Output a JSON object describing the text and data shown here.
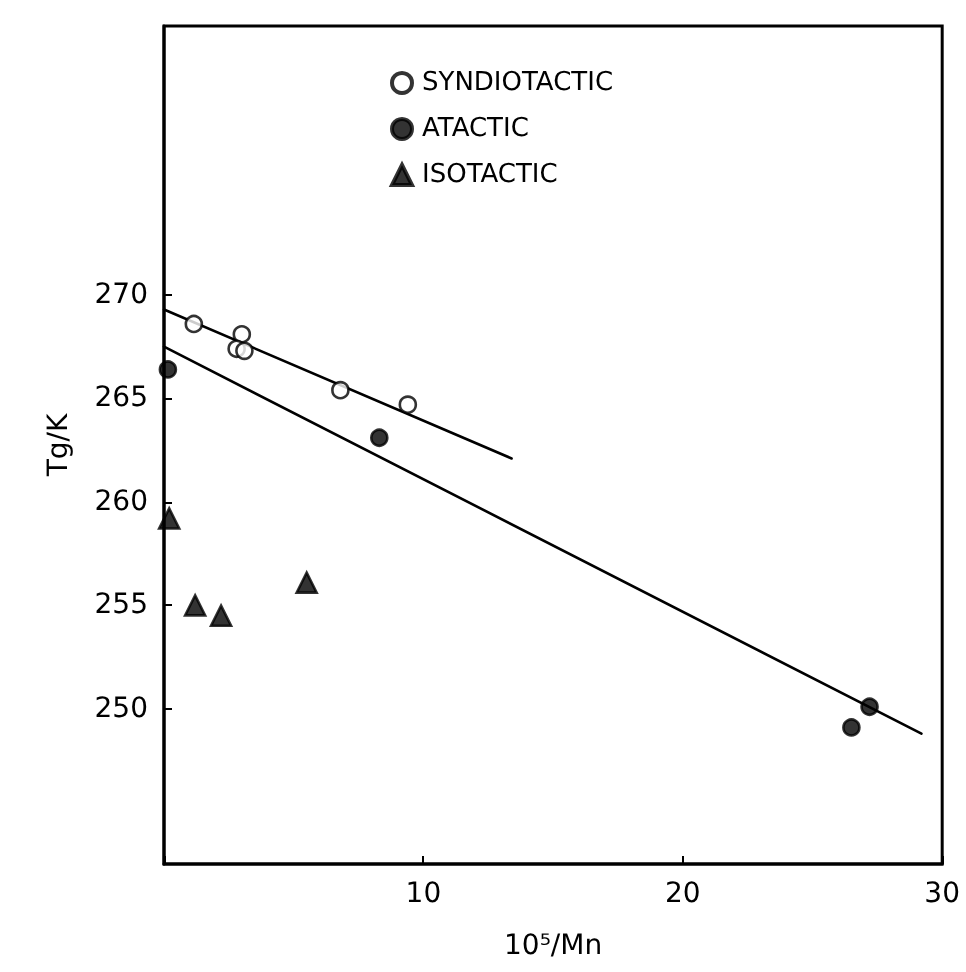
{
  "chart_data": {
    "type": "scatter",
    "xlabel": "10⁵/Mn",
    "ylabel": "Tg/K",
    "xlim": [
      0,
      30
    ],
    "xticks": [
      {
        "value": 0,
        "label": null
      },
      10,
      20,
      30
    ],
    "ylim": [
      242.5,
      283
    ],
    "yticks": [
      250,
      255,
      260,
      265,
      270
    ],
    "legend": "top",
    "grid": false,
    "series": [
      {
        "name": "SYNDIOTACTIC",
        "color": "#ffffff",
        "marker": "circle",
        "x": [
          1.15,
          3.0,
          2.8,
          3.1,
          6.8,
          9.4
        ],
        "values": [
          268.6,
          268.1,
          267.4,
          267.3,
          265.4,
          264.7
        ]
      },
      {
        "name": "ATACTIC",
        "color": "#000000",
        "marker": "circle",
        "x": [
          0.15,
          8.3,
          26.5,
          27.2
        ],
        "values": [
          266.4,
          263.1,
          249.1,
          250.1
        ]
      },
      {
        "name": "ISOTACTIC",
        "color": "#000000",
        "marker": "triangle",
        "x": [
          0.2,
          1.2,
          2.2,
          5.5
        ],
        "values": [
          259.2,
          255.0,
          254.5,
          256.1
        ]
      },
      {
        "type": "line",
        "color": "#000000",
        "marker": "none",
        "x": [
          0,
          13.4
        ],
        "values": [
          269.3,
          262.1
        ]
      },
      {
        "type": "line",
        "color": "#000000",
        "marker": "none",
        "x": [
          0,
          29.2
        ],
        "values": [
          267.5,
          248.8
        ]
      }
    ]
  }
}
